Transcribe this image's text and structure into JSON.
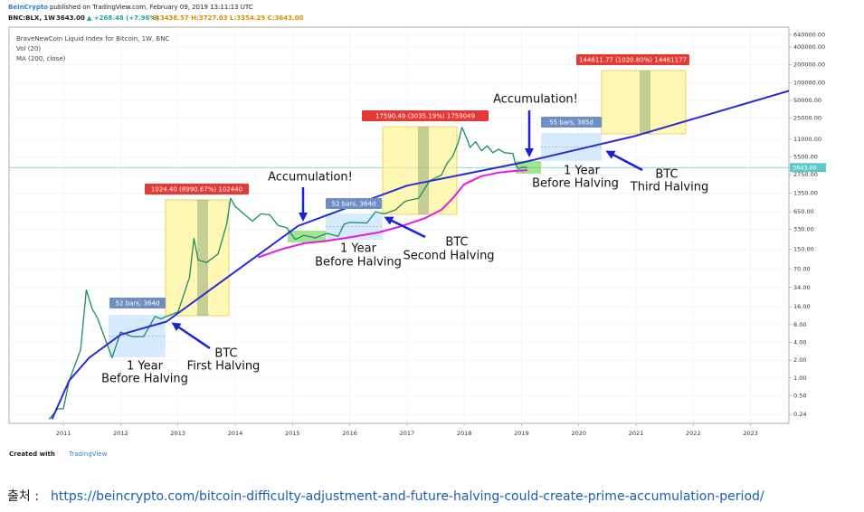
{
  "header": {
    "publisher": "BeInCrypto",
    "published": "published on TradingView.com, February 09, 2019 13:11:13 UTC",
    "symbol": "BNC:BLX, 1W",
    "last": "3643.00",
    "change": "▲ +268.48 (+7.96%)",
    "ohlc": "O:3438.57 H:3727.03 L:3354.29 C:3643.00"
  },
  "chart_data": {
    "type": "line",
    "title": "BraveNewCoin Liquid Index for Bitcoin, 1W, BNC",
    "volume_title": "Vol (20)",
    "log_y": true,
    "grid": true,
    "xlim": [
      2010.05,
      2023.67
    ],
    "xticks": [
      2011,
      2012,
      2013,
      2014,
      2015,
      2016,
      2017,
      2018,
      2019,
      2020,
      2021,
      2022,
      2023
    ],
    "ylim": [
      0.17,
      870000
    ],
    "yticks": [
      {
        "value": 640000,
        "label": "640000.00"
      },
      {
        "value": 400000,
        "label": "400000.00"
      },
      {
        "value": 200000,
        "label": "200000.00"
      },
      {
        "value": 100000,
        "label": "100000.00"
      },
      {
        "value": 50000,
        "label": "50000.00"
      },
      {
        "value": 25000,
        "label": "25000.00"
      },
      {
        "value": 11000,
        "label": "11000.00"
      },
      {
        "value": 5500,
        "label": "5500.00"
      },
      {
        "value": 2750,
        "label": "2750.00"
      },
      {
        "value": 1350,
        "label": "1350.00"
      },
      {
        "value": 650,
        "label": "650.00"
      },
      {
        "value": 330,
        "label": "330.00"
      },
      {
        "value": 150,
        "label": "150.00"
      },
      {
        "value": 70,
        "label": "70.00"
      },
      {
        "value": 34,
        "label": "34.00"
      },
      {
        "value": 16,
        "label": "16.00"
      },
      {
        "value": 8,
        "label": "8.00"
      },
      {
        "value": 4,
        "label": "4.00"
      },
      {
        "value": 2,
        "label": "2.00"
      },
      {
        "value": 1,
        "label": "1.00"
      },
      {
        "value": 0.5,
        "label": "0.50"
      },
      {
        "value": 0.24,
        "label": "0.24"
      }
    ],
    "last_price": {
      "value": 3643,
      "label": "3643.00"
    },
    "last_price_color": "#5fc9c9",
    "series": [
      {
        "name": "BraveNewCoin Liquid Index for Bitcoin, 1W, BNC",
        "color": "#1e8c62",
        "x": [
          2010.75,
          2010.9,
          2011.0,
          2011.1,
          2011.3,
          2011.4,
          2011.5,
          2011.6,
          2011.75,
          2011.85,
          2012.0,
          2012.2,
          2012.4,
          2012.6,
          2012.7,
          2012.9,
          2013.0,
          2013.2,
          2013.28,
          2013.35,
          2013.5,
          2013.7,
          2013.85,
          2013.92,
          2014.0,
          2014.15,
          2014.3,
          2014.45,
          2014.6,
          2014.75,
          2014.9,
          2015.05,
          2015.2,
          2015.4,
          2015.6,
          2015.8,
          2015.9,
          2016.0,
          2016.3,
          2016.45,
          2016.6,
          2016.8,
          2016.95,
          2017.0,
          2017.2,
          2017.4,
          2017.6,
          2017.7,
          2017.8,
          2017.9,
          2017.96,
          2018.05,
          2018.1,
          2018.2,
          2018.3,
          2018.4,
          2018.5,
          2018.6,
          2018.7,
          2018.85,
          2018.9,
          2018.95,
          2019.0,
          2019.1
        ],
        "values": [
          0.2,
          0.3,
          0.3,
          0.9,
          3,
          31,
          15,
          10,
          4,
          2.2,
          6,
          5,
          5,
          11,
          10,
          12,
          13,
          50,
          230,
          100,
          90,
          125,
          400,
          1100,
          800,
          600,
          450,
          600,
          580,
          380,
          350,
          220,
          260,
          235,
          280,
          250,
          400,
          430,
          420,
          650,
          600,
          700,
          950,
          1000,
          1100,
          2200,
          2700,
          4300,
          5700,
          10000,
          17500,
          11000,
          8000,
          10000,
          7000,
          8500,
          6500,
          7500,
          6500,
          6300,
          4000,
          3500,
          3700,
          3643
        ]
      },
      {
        "name": "MA (200, close)",
        "color": "#e619e6",
        "x": [
          2014.4,
          2014.8,
          2015.2,
          2015.6,
          2016.0,
          2016.5,
          2016.9,
          2017.3,
          2017.6,
          2017.8,
          2018.0,
          2018.3,
          2018.6,
          2018.9,
          2019.1
        ],
        "values": [
          110,
          150,
          190,
          210,
          240,
          290,
          370,
          500,
          700,
          1100,
          1900,
          2600,
          3000,
          3200,
          3300
        ]
      },
      {
        "color": "#2b2bd6",
        "x": [
          2010.8,
          2011.1,
          2011.45,
          2012.0,
          2012.8,
          2015.1,
          2017.0,
          2019.0,
          2021.0,
          2023.7
        ],
        "values": [
          0.2,
          0.9,
          2.2,
          5.4,
          9,
          375,
          1800,
          4400,
          12600,
          74000
        ]
      }
    ]
  },
  "annotations": [
    "52 bars, 364d",
    "1024.40 (8990.67%) 102440",
    "1 Year",
    "Before Halving",
    "BTC",
    "First Halving",
    "Accumulation!",
    "52 bars, 364d",
    "1 Year",
    "Before Halving",
    "BTC",
    "Second Halving",
    "17590.49 (3035.19%) 1759049",
    "Accumulation!",
    "55 bars, 385d",
    "1 Year",
    "Before Halving",
    "BTC",
    "Third Halving",
    "144611.77 (1020.80%) 14461177"
  ],
  "footer": {
    "created_with": "Created with",
    "brand": "TradingView"
  },
  "caption": {
    "label": "출처 :",
    "url": "https://beincrypto.com/bitcoin-difficulty-adjustment-and-future-halving-could-create-prime-accumulation-period/"
  }
}
